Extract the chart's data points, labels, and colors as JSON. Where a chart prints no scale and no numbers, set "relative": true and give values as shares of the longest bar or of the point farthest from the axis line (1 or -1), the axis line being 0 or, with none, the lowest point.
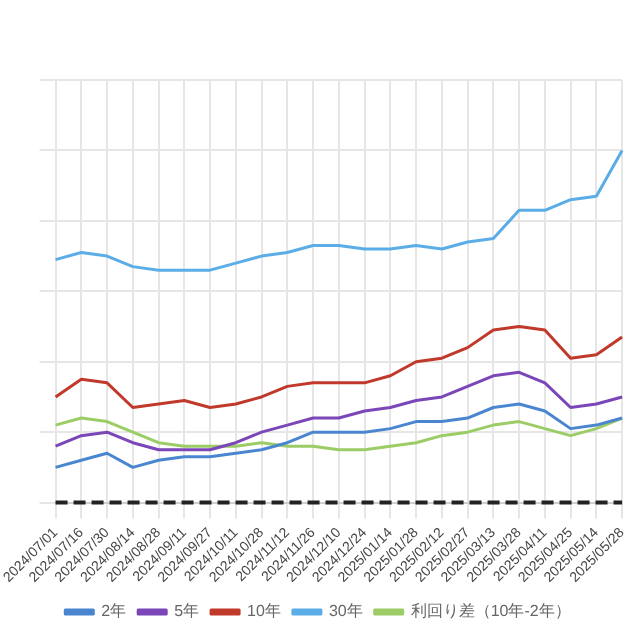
{
  "chart_data": {
    "type": "line",
    "relative": true,
    "grid": true,
    "legend": "bottom",
    "marker": "none",
    "line_style": "solid",
    "categories": [
      "2024/07/01",
      "2024/07/16",
      "2024/07/30",
      "2024/08/14",
      "2024/08/28",
      "2024/09/11",
      "2024/09/27",
      "2024/10/11",
      "2024/10/28",
      "2024/11/12",
      "2024/11/26",
      "2024/12/10",
      "2024/12/24",
      "2025/01/14",
      "2025/01/28",
      "2025/02/12",
      "2025/02/27",
      "2025/03/13",
      "2025/03/28",
      "2025/04/11",
      "2025/04/25",
      "2025/05/14",
      "2025/05/28"
    ],
    "series": [
      {
        "name": "2年",
        "color": "#4a86d0",
        "values": [
          0.1,
          0.12,
          0.14,
          0.1,
          0.12,
          0.13,
          0.13,
          0.14,
          0.15,
          0.17,
          0.2,
          0.2,
          0.2,
          0.21,
          0.23,
          0.23,
          0.24,
          0.27,
          0.28,
          0.26,
          0.21,
          0.22,
          0.24
        ]
      },
      {
        "name": "5年",
        "color": "#7b46b8",
        "values": [
          0.16,
          0.19,
          0.2,
          0.17,
          0.15,
          0.15,
          0.15,
          0.17,
          0.2,
          0.22,
          0.24,
          0.24,
          0.26,
          0.27,
          0.29,
          0.3,
          0.33,
          0.36,
          0.37,
          0.34,
          0.27,
          0.28,
          0.3
        ]
      },
      {
        "name": "10年",
        "color": "#c0392b",
        "values": [
          0.3,
          0.35,
          0.34,
          0.27,
          0.28,
          0.29,
          0.27,
          0.28,
          0.3,
          0.33,
          0.34,
          0.34,
          0.34,
          0.36,
          0.4,
          0.41,
          0.44,
          0.49,
          0.5,
          0.49,
          0.41,
          0.42,
          0.47
        ]
      },
      {
        "name": "30年",
        "color": "#5aade6",
        "values": [
          0.69,
          0.71,
          0.7,
          0.67,
          0.66,
          0.66,
          0.66,
          0.68,
          0.7,
          0.71,
          0.73,
          0.73,
          0.72,
          0.72,
          0.73,
          0.72,
          0.74,
          0.75,
          0.83,
          0.83,
          0.86,
          0.87,
          1
        ]
      },
      {
        "name": "利回り差（10年-2年）",
        "color": "#9ccc65",
        "values": [
          0.22,
          0.24,
          0.23,
          0.2,
          0.17,
          0.16,
          0.16,
          0.16,
          0.17,
          0.16,
          0.16,
          0.15,
          0.15,
          0.16,
          0.17,
          0.19,
          0.2,
          0.22,
          0.23,
          0.21,
          0.19,
          0.21,
          0.24
        ]
      }
    ],
    "ref_lines": [
      {
        "axis": "y",
        "value": 0,
        "color": "#222222",
        "line_style": "dashed"
      }
    ]
  }
}
